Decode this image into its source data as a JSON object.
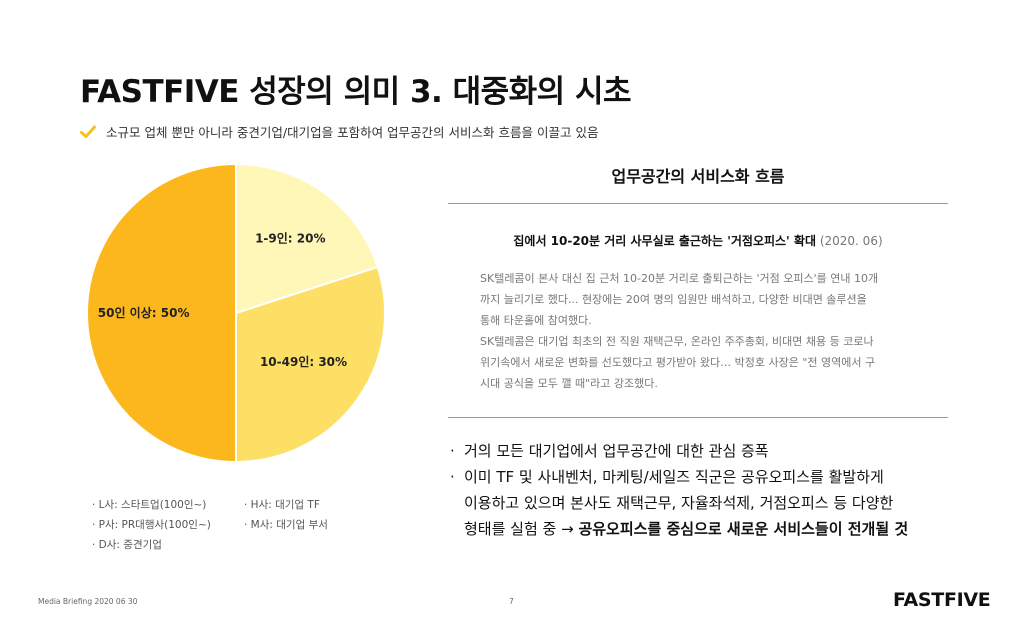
{
  "header": {
    "title": "FASTFIVE 성장의 의미 3. 대중화의 시초",
    "subtitle": "소규모 업체 뿐만 아니라 중견기업/대기업을 포함하여 업무공간의 서비스화 흐름을 이끌고 있음",
    "check_color": "#f6c21a",
    "check_icon": "check-icon"
  },
  "chart_data": {
    "type": "pie",
    "slices": [
      {
        "label": "1-9인: 20%",
        "value": 20,
        "color": "#fff7b8"
      },
      {
        "label": "10-49인: 30%",
        "value": 30,
        "color": "#fddf65"
      },
      {
        "label": "50인 이상: 50%",
        "value": 50,
        "color": "#fbb71c"
      }
    ],
    "start_angle_deg": 0,
    "direction": "clockwise",
    "slice_border_color": "#ffffff",
    "legend_position": "bottom"
  },
  "legend": [
    "· L사: 스타트업(100인~)",
    "· H사: 대기업 TF",
    "· P사: PR대행사(100인~)",
    "· M사: 대기업 부서",
    "· D사: 중견기업"
  ],
  "panel": {
    "title": "업무공간의 서비스화 흐름",
    "article_title": "집에서 10-20분 거리 사무실로 출근하는 '거점오피스' 확대",
    "article_date": "(2020. 06)",
    "article_lines": [
      "SK텔레콤이 본사 대신 집 근처 10-20분 거리로 출퇴근하는 '거점 오피스'를 연내 10개",
      "까지 늘리기로 했다... 현장에는 20여 명의 임원만 배석하고, 다양한 비대면 솔루션을",
      "통해 타운홀에 참여했다.",
      "SK텔레콤은 대기업 최초의 전 직원 재택근무, 온라인 주주총회, 비대면 채용 등 코로나",
      "위기속에서 새로운 변화를 선도했다고 평가받아 왔다… 박정호 사장은 \"전 영역에서 구",
      "시대 공식을 모두 깰 때\"라고 강조했다."
    ]
  },
  "bullets": {
    "marker": "·",
    "item1": "거의 모든 대기업에서 업무공간에 대한 관심 증폭",
    "item2_line1": "이미 TF 및 사내벤처, 마케팅/세일즈 직군은 공유오피스를 활발하게",
    "item2_line2": "이용하고 있으며 본사도 재택근무, 자율좌석제, 거점오피스 등 다양한",
    "item2_line3_normal": "형태를 실험 중 → ",
    "item2_line3_bold": "공유오피스를 중심으로 새로운 서비스들이 전개될 것"
  },
  "footer": {
    "left": "Media Briefing 2020 06 30",
    "page": "7",
    "logo": "FASTFIVE"
  }
}
